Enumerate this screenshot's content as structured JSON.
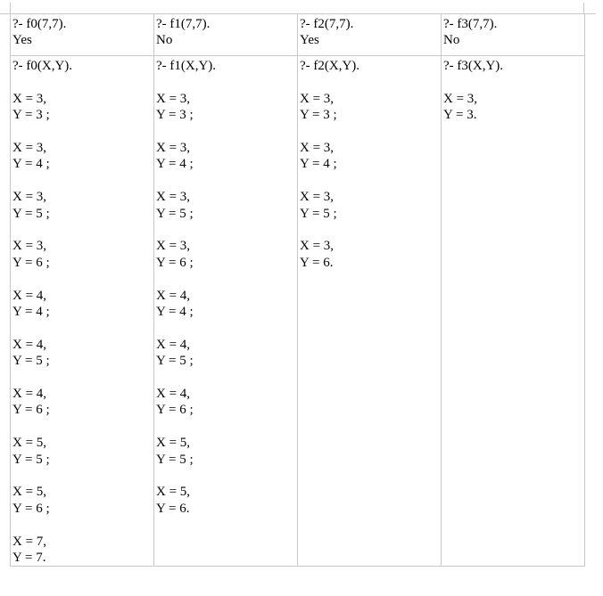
{
  "table": {
    "columns": [
      {
        "query": "?- f0(7,7).",
        "result": "Yes",
        "query_xy": "?- f0(X,Y).",
        "answers": [
          [
            "X = 3,",
            "Y = 3 ;"
          ],
          [
            "X = 3,",
            "Y = 4 ;"
          ],
          [
            "X = 3,",
            "Y = 5 ;"
          ],
          [
            "X = 3,",
            "Y = 6 ;"
          ],
          [
            "X = 4,",
            "Y = 4 ;"
          ],
          [
            "X = 4,",
            "Y = 5 ;"
          ],
          [
            "X = 4,",
            "Y = 6 ;"
          ],
          [
            "X = 5,",
            "Y = 5 ;"
          ],
          [
            "X = 5,",
            "Y = 6 ;"
          ],
          [
            "X = 7,",
            "Y = 7."
          ]
        ]
      },
      {
        "query": "?- f1(7,7).",
        "result": "No",
        "query_xy": "?- f1(X,Y).",
        "answers": [
          [
            "X = 3,",
            "Y = 3 ;"
          ],
          [
            "X = 3,",
            "Y = 4 ;"
          ],
          [
            "X = 3,",
            "Y = 5 ;"
          ],
          [
            "X = 3,",
            "Y = 6 ;"
          ],
          [
            "X = 4,",
            "Y = 4 ;"
          ],
          [
            "X = 4,",
            "Y = 5 ;"
          ],
          [
            "X = 4,",
            "Y = 6 ;"
          ],
          [
            "X = 5,",
            "Y = 5 ;"
          ],
          [
            "X = 5,",
            "Y = 6."
          ]
        ]
      },
      {
        "query": "?- f2(7,7).",
        "result": "Yes",
        "query_xy": "?- f2(X,Y).",
        "answers": [
          [
            "X = 3,",
            "Y = 3 ;"
          ],
          [
            "X = 3,",
            "Y = 4 ;"
          ],
          [
            "X = 3,",
            "Y = 5 ;"
          ],
          [
            "X = 3,",
            "Y = 6."
          ]
        ]
      },
      {
        "query": "?- f3(7,7).",
        "result": "No",
        "query_xy": "?- f3(X,Y).",
        "answers": [
          [
            "X = 3,",
            "Y = 3."
          ]
        ]
      }
    ]
  }
}
